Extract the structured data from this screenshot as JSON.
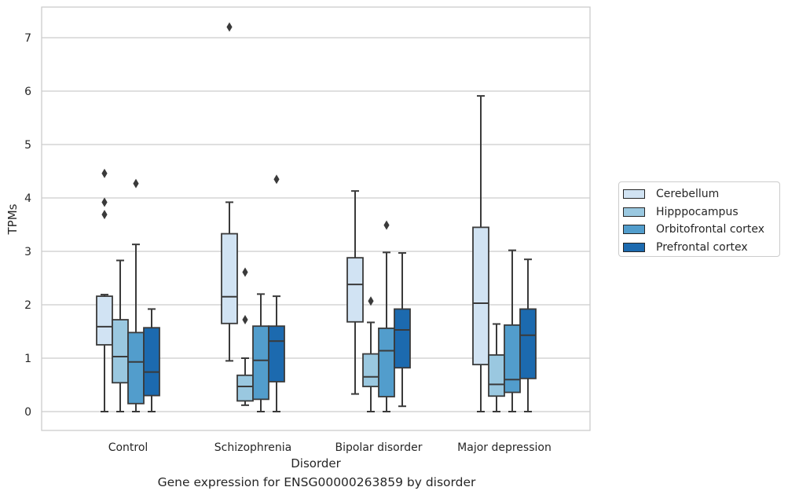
{
  "chart_data": {
    "type": "box",
    "title": "Gene expression for ENSG00000263859 by disorder",
    "xlabel": "Disorder",
    "ylabel": "TPMs",
    "ylim": [
      -0.35,
      7.6
    ],
    "yticks": [
      0,
      1,
      2,
      3,
      4,
      5,
      6,
      7
    ],
    "grid": true,
    "legend_placement": "right",
    "categories": [
      "Control",
      "Schizophrenia",
      "Bipolar disorder",
      "Major depression"
    ],
    "series": [
      {
        "name": "Cerebellum",
        "color": "#d1e3f3",
        "boxes": [
          {
            "whislo": 0.0,
            "q1": 1.25,
            "median": 1.59,
            "q3": 2.16,
            "whishi": 2.19,
            "fliers": [
              3.69,
              3.92,
              4.46
            ]
          },
          {
            "whislo": 0.95,
            "q1": 1.65,
            "median": 2.15,
            "q3": 3.33,
            "whishi": 3.92,
            "fliers": [
              7.2
            ]
          },
          {
            "whislo": 0.33,
            "q1": 1.68,
            "median": 2.38,
            "q3": 2.88,
            "whishi": 4.13,
            "fliers": []
          },
          {
            "whislo": 0.0,
            "q1": 0.88,
            "median": 2.03,
            "q3": 3.45,
            "whishi": 5.91,
            "fliers": []
          }
        ]
      },
      {
        "name": "Hipppocampus",
        "color": "#9ac8e0",
        "boxes": [
          {
            "whislo": 0.0,
            "q1": 0.54,
            "median": 1.03,
            "q3": 1.72,
            "whishi": 2.83,
            "fliers": []
          },
          {
            "whislo": 0.12,
            "q1": 0.2,
            "median": 0.47,
            "q3": 0.68,
            "whishi": 1.0,
            "fliers": [
              1.72,
              2.61
            ]
          },
          {
            "whislo": 0.0,
            "q1": 0.47,
            "median": 0.65,
            "q3": 1.08,
            "whishi": 1.67,
            "fliers": [
              2.07
            ]
          },
          {
            "whislo": 0.0,
            "q1": 0.29,
            "median": 0.51,
            "q3": 1.06,
            "whishi": 1.64,
            "fliers": []
          }
        ]
      },
      {
        "name": "Orbitofrontal cortex",
        "color": "#529dcc",
        "boxes": [
          {
            "whislo": 0.0,
            "q1": 0.15,
            "median": 0.93,
            "q3": 1.48,
            "whishi": 3.13,
            "fliers": [
              4.27
            ]
          },
          {
            "whislo": 0.0,
            "q1": 0.23,
            "median": 0.96,
            "q3": 1.6,
            "whishi": 2.2,
            "fliers": []
          },
          {
            "whislo": 0.0,
            "q1": 0.28,
            "median": 1.14,
            "q3": 1.56,
            "whishi": 2.98,
            "fliers": [
              3.49
            ]
          },
          {
            "whislo": 0.0,
            "q1": 0.36,
            "median": 0.6,
            "q3": 1.62,
            "whishi": 3.02,
            "fliers": []
          }
        ]
      },
      {
        "name": "Prefrontal cortex",
        "color": "#1c6aaf",
        "boxes": [
          {
            "whislo": 0.0,
            "q1": 0.3,
            "median": 0.74,
            "q3": 1.57,
            "whishi": 1.92,
            "fliers": []
          },
          {
            "whislo": 0.0,
            "q1": 0.56,
            "median": 1.32,
            "q3": 1.6,
            "whishi": 2.16,
            "fliers": [
              4.35
            ]
          },
          {
            "whislo": 0.1,
            "q1": 0.82,
            "median": 1.53,
            "q3": 1.92,
            "whishi": 2.97,
            "fliers": []
          },
          {
            "whislo": 0.0,
            "q1": 0.62,
            "median": 1.43,
            "q3": 1.92,
            "whishi": 2.85,
            "fliers": []
          }
        ]
      }
    ]
  }
}
